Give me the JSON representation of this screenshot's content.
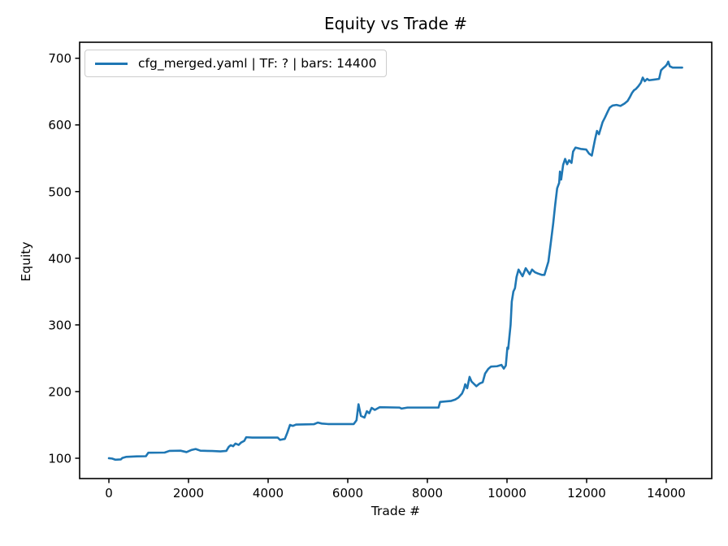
{
  "window": {
    "background": "#ffffff"
  },
  "colors": {
    "line": "#1f77b4",
    "text": "#000000",
    "spine": "#000000",
    "legend_border": "#cccccc"
  },
  "chart_data": {
    "type": "line",
    "title": "Equity vs Trade #",
    "xlabel": "Trade #",
    "ylabel": "Equity",
    "grid": false,
    "legend": {
      "position": "upper left",
      "entries": [
        {
          "label": "cfg_merged.yaml | TF: ? | bars: 14400",
          "color": "#1f77b4"
        }
      ]
    },
    "axes": {
      "xlim": [
        -735,
        15143
      ],
      "ylim": [
        69.5,
        724
      ],
      "xticks": [
        0,
        2000,
        4000,
        6000,
        8000,
        10000,
        12000,
        14000
      ],
      "yticks": [
        100,
        200,
        300,
        400,
        500,
        600,
        700
      ]
    },
    "series": [
      {
        "name": "cfg_merged.yaml | TF: ? | bars: 14400",
        "color": "#1f77b4",
        "linewidth": 2.6,
        "points": [
          [
            0,
            100
          ],
          [
            80,
            99.5
          ],
          [
            160,
            97.8
          ],
          [
            300,
            98.2
          ],
          [
            340,
            100.5
          ],
          [
            430,
            102
          ],
          [
            700,
            102.8
          ],
          [
            930,
            103
          ],
          [
            990,
            108.3
          ],
          [
            1400,
            108.5
          ],
          [
            1520,
            111
          ],
          [
            1800,
            111.3
          ],
          [
            1950,
            109.2
          ],
          [
            2080,
            112.5
          ],
          [
            2180,
            113.8
          ],
          [
            2300,
            111.3
          ],
          [
            2600,
            110.8
          ],
          [
            2800,
            110.3
          ],
          [
            2950,
            111
          ],
          [
            3010,
            117
          ],
          [
            3060,
            119.5
          ],
          [
            3120,
            118
          ],
          [
            3180,
            122
          ],
          [
            3260,
            120
          ],
          [
            3320,
            123.5
          ],
          [
            3400,
            126
          ],
          [
            3450,
            131.5
          ],
          [
            3600,
            131
          ],
          [
            4240,
            131
          ],
          [
            4300,
            127.5
          ],
          [
            4420,
            129
          ],
          [
            4480,
            138
          ],
          [
            4550,
            150
          ],
          [
            4620,
            148.5
          ],
          [
            4700,
            150.5
          ],
          [
            5150,
            151
          ],
          [
            5250,
            153.5
          ],
          [
            5350,
            152
          ],
          [
            5500,
            151.3
          ],
          [
            6150,
            151.3
          ],
          [
            6220,
            157
          ],
          [
            6270,
            181
          ],
          [
            6330,
            163.5
          ],
          [
            6420,
            161
          ],
          [
            6480,
            170.5
          ],
          [
            6540,
            167.5
          ],
          [
            6600,
            175.5
          ],
          [
            6680,
            172.5
          ],
          [
            6800,
            176.5
          ],
          [
            7300,
            176
          ],
          [
            7350,
            174.5
          ],
          [
            7500,
            176
          ],
          [
            8280,
            176
          ],
          [
            8320,
            184.5
          ],
          [
            8600,
            186
          ],
          [
            8700,
            188
          ],
          [
            8780,
            191
          ],
          [
            8870,
            197
          ],
          [
            8920,
            204
          ],
          [
            8950,
            211
          ],
          [
            9000,
            205
          ],
          [
            9060,
            222
          ],
          [
            9110,
            215
          ],
          [
            9230,
            208
          ],
          [
            9310,
            212
          ],
          [
            9390,
            214
          ],
          [
            9450,
            227
          ],
          [
            9530,
            234
          ],
          [
            9600,
            237.5
          ],
          [
            9750,
            238
          ],
          [
            9860,
            240
          ],
          [
            9920,
            234.5
          ],
          [
            9970,
            239
          ],
          [
            10010,
            266
          ],
          [
            10030,
            264
          ],
          [
            10060,
            282
          ],
          [
            10090,
            300
          ],
          [
            10120,
            335
          ],
          [
            10160,
            350
          ],
          [
            10200,
            355
          ],
          [
            10240,
            372
          ],
          [
            10290,
            383
          ],
          [
            10390,
            373
          ],
          [
            10470,
            385
          ],
          [
            10570,
            376
          ],
          [
            10630,
            383
          ],
          [
            10700,
            379
          ],
          [
            10780,
            377
          ],
          [
            10880,
            375
          ],
          [
            10940,
            375
          ],
          [
            11040,
            395
          ],
          [
            11100,
            423
          ],
          [
            11160,
            452
          ],
          [
            11210,
            480
          ],
          [
            11260,
            505
          ],
          [
            11310,
            513
          ],
          [
            11330,
            530
          ],
          [
            11360,
            518
          ],
          [
            11410,
            540
          ],
          [
            11460,
            549
          ],
          [
            11510,
            541
          ],
          [
            11560,
            547
          ],
          [
            11620,
            543
          ],
          [
            11660,
            560
          ],
          [
            11720,
            566
          ],
          [
            11850,
            564
          ],
          [
            11990,
            563
          ],
          [
            12060,
            557
          ],
          [
            12130,
            554
          ],
          [
            12210,
            578
          ],
          [
            12260,
            591
          ],
          [
            12310,
            586
          ],
          [
            12400,
            604
          ],
          [
            12460,
            611
          ],
          [
            12530,
            620
          ],
          [
            12580,
            626
          ],
          [
            12650,
            629
          ],
          [
            12750,
            630
          ],
          [
            12850,
            628.5
          ],
          [
            12950,
            632
          ],
          [
            13030,
            636
          ],
          [
            13080,
            641
          ],
          [
            13140,
            648
          ],
          [
            13190,
            652
          ],
          [
            13240,
            654
          ],
          [
            13300,
            658
          ],
          [
            13360,
            663
          ],
          [
            13410,
            671
          ],
          [
            13460,
            665.5
          ],
          [
            13520,
            669
          ],
          [
            13570,
            667
          ],
          [
            13700,
            668
          ],
          [
            13820,
            669
          ],
          [
            13870,
            682
          ],
          [
            13920,
            685
          ],
          [
            13980,
            688
          ],
          [
            14020,
            691
          ],
          [
            14050,
            695
          ],
          [
            14090,
            688
          ],
          [
            14160,
            686
          ],
          [
            14400,
            686
          ]
        ]
      }
    ]
  }
}
